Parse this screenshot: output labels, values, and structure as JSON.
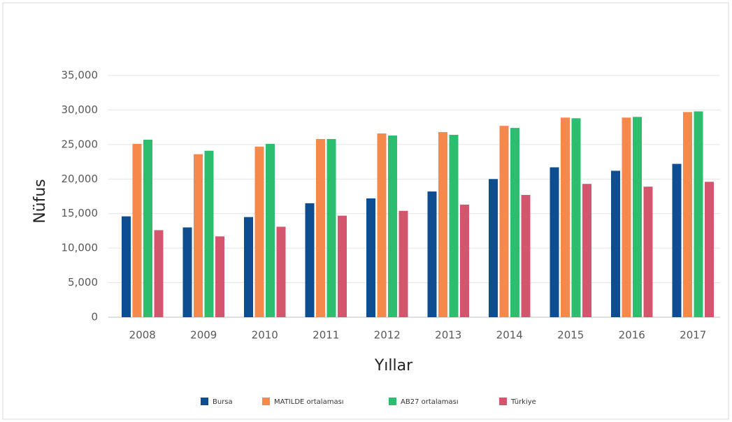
{
  "chart_data": {
    "type": "bar",
    "x_label": "Yıllar",
    "y_label": "Nüfus",
    "categories": [
      "2008",
      "2009",
      "2010",
      "2011",
      "2012",
      "2013",
      "2014",
      "2015",
      "2016",
      "2017"
    ],
    "series": [
      {
        "name": "Bursa",
        "color": "#0e4d8f",
        "values": [
          14600,
          13000,
          14500,
          16500,
          17200,
          18200,
          20000,
          21700,
          21200,
          22200
        ]
      },
      {
        "name": "MATILDE ortalaması",
        "color": "#f5894c",
        "values": [
          25100,
          23600,
          24700,
          25800,
          26600,
          26800,
          27700,
          28900,
          28900,
          29700
        ]
      },
      {
        "name": "AB27 ortalaması",
        "color": "#2dbd6e",
        "values": [
          25700,
          24100,
          25100,
          25800,
          26300,
          26400,
          27400,
          28800,
          29000,
          29800
        ]
      },
      {
        "name": "Türkiye",
        "color": "#d4566e",
        "values": [
          12600,
          11700,
          13100,
          14700,
          15400,
          16300,
          17700,
          19300,
          18900,
          19600
        ]
      }
    ],
    "ylim": [
      0,
      35000
    ],
    "yticks": [
      0,
      {
        "value": 5000,
        "label": "5,000"
      },
      {
        "value": 10000,
        "label": "10,000"
      },
      {
        "value": 15000,
        "label": "15,000"
      },
      {
        "value": 20000,
        "label": "20,000"
      },
      {
        "value": 25000,
        "label": "25,000"
      },
      {
        "value": 30000,
        "label": "30,000"
      },
      {
        "value": 35000,
        "label": "35,000"
      }
    ],
    "grid": true,
    "legend": "bottom"
  }
}
